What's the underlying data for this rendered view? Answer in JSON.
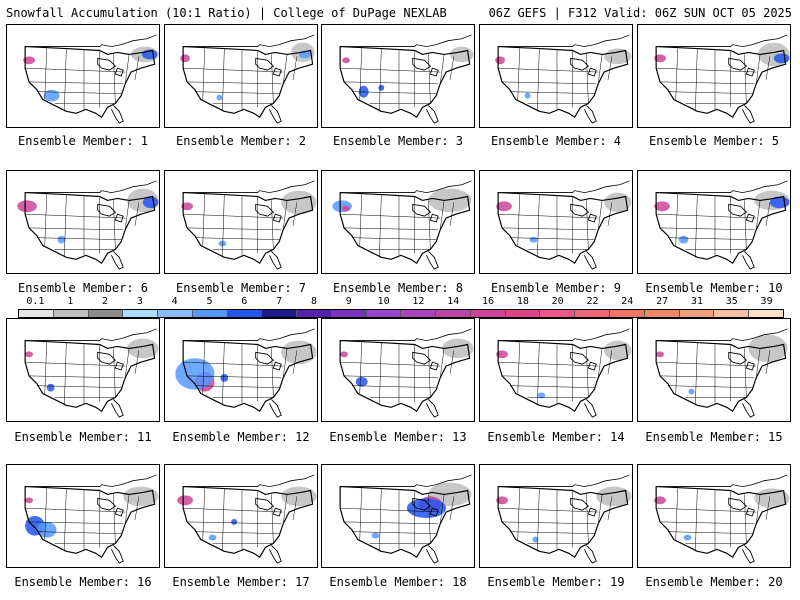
{
  "title_left": "Snowfall Accumulation (10:1 Ratio) | College of DuPage NEXLAB",
  "title_right": "06Z GEFS | F312 Valid: 06Z SUN OCT 05 2025",
  "colorbar": {
    "labels": [
      "0.1",
      "1",
      "2",
      "3",
      "4",
      "5",
      "6",
      "7",
      "8",
      "9",
      "10",
      "12",
      "14",
      "16",
      "18",
      "20",
      "22",
      "24",
      "27",
      "31",
      "35",
      "39"
    ],
    "colors": [
      "#e6e6e6",
      "#bdbdbd",
      "#8c8c8c",
      "#aaddff",
      "#88bbff",
      "#5599ff",
      "#2255ee",
      "#1a1a88",
      "#5522aa",
      "#7733bb",
      "#9944cc",
      "#aa44bb",
      "#bb44aa",
      "#cc4499",
      "#dd4488",
      "#ee5588",
      "#ee6677",
      "#ee7766",
      "#ee8866",
      "#f0a080",
      "#f5c0a0",
      "#fbe0c8"
    ]
  },
  "panels": [
    {
      "label": "Ensemble Member: 1",
      "snow": [
        [
          "#bdbdbd",
          140,
          30,
          14,
          8
        ],
        [
          "#2255ee",
          145,
          30,
          8,
          5
        ],
        [
          "#cc4499",
          22,
          36,
          6,
          4
        ],
        [
          "#5599ff",
          45,
          72,
          8,
          6
        ]
      ]
    },
    {
      "label": "Ensemble Member: 2",
      "snow": [
        [
          "#bdbdbd",
          140,
          28,
          12,
          10
        ],
        [
          "#5599ff",
          142,
          30,
          6,
          4
        ],
        [
          "#cc4499",
          20,
          34,
          5,
          4
        ],
        [
          "#5599ff",
          55,
          74,
          3,
          3
        ]
      ]
    },
    {
      "label": "Ensemble Member: 3",
      "snow": [
        [
          "#bdbdbd",
          142,
          30,
          12,
          8
        ],
        [
          "#2255ee",
          42,
          68,
          5,
          6
        ],
        [
          "#cc4499",
          24,
          36,
          4,
          3
        ],
        [
          "#2255ee",
          60,
          64,
          3,
          3
        ]
      ]
    },
    {
      "label": "Ensemble Member: 4",
      "snow": [
        [
          "#bdbdbd",
          140,
          32,
          14,
          8
        ],
        [
          "#cc4499",
          20,
          36,
          5,
          4
        ],
        [
          "#5599ff",
          48,
          72,
          3,
          3
        ]
      ]
    },
    {
      "label": "Ensemble Member: 5",
      "snow": [
        [
          "#bdbdbd",
          138,
          30,
          16,
          12
        ],
        [
          "#2255ee",
          146,
          34,
          8,
          5
        ],
        [
          "#cc4499",
          22,
          34,
          6,
          4
        ]
      ]
    },
    {
      "label": "Ensemble Member: 6",
      "snow": [
        [
          "#bdbdbd",
          138,
          30,
          16,
          12
        ],
        [
          "#2255ee",
          146,
          32,
          8,
          6
        ],
        [
          "#cc4499",
          20,
          36,
          10,
          6
        ],
        [
          "#5599ff",
          55,
          70,
          4,
          4
        ]
      ]
    },
    {
      "label": "Ensemble Member: 7",
      "snow": [
        [
          "#bdbdbd",
          136,
          32,
          18,
          12
        ],
        [
          "#cc4499",
          22,
          36,
          6,
          4
        ],
        [
          "#5599ff",
          58,
          74,
          4,
          3
        ]
      ]
    },
    {
      "label": "Ensemble Member: 8",
      "snow": [
        [
          "#bdbdbd",
          130,
          30,
          22,
          12
        ],
        [
          "#5599ff",
          20,
          36,
          10,
          6
        ],
        [
          "#cc4499",
          24,
          38,
          4,
          3
        ]
      ]
    },
    {
      "label": "Ensemble Member: 9",
      "snow": [
        [
          "#bdbdbd",
          140,
          32,
          14,
          10
        ],
        [
          "#cc4499",
          24,
          36,
          8,
          5
        ],
        [
          "#5599ff",
          54,
          70,
          4,
          3
        ]
      ]
    },
    {
      "label": "Ensemble Member: 10",
      "snow": [
        [
          "#bdbdbd",
          136,
          30,
          18,
          10
        ],
        [
          "#2255ee",
          144,
          32,
          10,
          6
        ],
        [
          "#cc4499",
          24,
          36,
          8,
          5
        ],
        [
          "#5599ff",
          46,
          70,
          5,
          4
        ]
      ]
    },
    {
      "label": "Ensemble Member: 11",
      "snow": [
        [
          "#bdbdbd",
          138,
          30,
          16,
          10
        ],
        [
          "#2255ee",
          44,
          70,
          4,
          4
        ],
        [
          "#cc4499",
          22,
          36,
          4,
          3
        ]
      ]
    },
    {
      "label": "Ensemble Member: 12",
      "snow": [
        [
          "#bdbdbd",
          136,
          34,
          18,
          12
        ],
        [
          "#cc4499",
          40,
          64,
          10,
          10
        ],
        [
          "#5599ff",
          30,
          56,
          20,
          16
        ],
        [
          "#2255ee",
          60,
          60,
          4,
          4
        ]
      ]
    },
    {
      "label": "Ensemble Member: 13",
      "snow": [
        [
          "#bdbdbd",
          138,
          30,
          16,
          10
        ],
        [
          "#2255ee",
          40,
          64,
          6,
          5
        ],
        [
          "#cc4499",
          22,
          36,
          4,
          3
        ]
      ]
    },
    {
      "label": "Ensemble Member: 14",
      "snow": [
        [
          "#bdbdbd",
          140,
          32,
          14,
          10
        ],
        [
          "#cc4499",
          22,
          36,
          6,
          4
        ],
        [
          "#5599ff",
          62,
          78,
          4,
          3
        ]
      ]
    },
    {
      "label": "Ensemble Member: 15",
      "snow": [
        [
          "#bdbdbd",
          132,
          30,
          20,
          14
        ],
        [
          "#cc4499",
          22,
          36,
          4,
          3
        ],
        [
          "#5599ff",
          54,
          74,
          3,
          3
        ]
      ]
    },
    {
      "label": "Ensemble Member: 16",
      "snow": [
        [
          "#bdbdbd",
          136,
          32,
          18,
          10
        ],
        [
          "#2255ee",
          28,
          62,
          10,
          10
        ],
        [
          "#5599ff",
          40,
          66,
          10,
          8
        ],
        [
          "#cc4499",
          22,
          36,
          4,
          3
        ]
      ]
    },
    {
      "label": "Ensemble Member: 17",
      "snow": [
        [
          "#bdbdbd",
          136,
          32,
          18,
          10
        ],
        [
          "#cc4499",
          20,
          36,
          8,
          5
        ],
        [
          "#5599ff",
          48,
          74,
          4,
          3
        ],
        [
          "#2255ee",
          70,
          58,
          3,
          3
        ]
      ]
    },
    {
      "label": "Ensemble Member: 18",
      "snow": [
        [
          "#bdbdbd",
          130,
          30,
          22,
          12
        ],
        [
          "#cc4499",
          110,
          40,
          12,
          8
        ],
        [
          "#2255ee",
          106,
          44,
          20,
          10
        ],
        [
          "#5599ff",
          54,
          72,
          4,
          3
        ]
      ]
    },
    {
      "label": "Ensemble Member: 19",
      "snow": [
        [
          "#bdbdbd",
          136,
          32,
          18,
          10
        ],
        [
          "#cc4499",
          22,
          36,
          6,
          4
        ],
        [
          "#5599ff",
          56,
          76,
          3,
          3
        ]
      ]
    },
    {
      "label": "Ensemble Member: 20",
      "snow": [
        [
          "#bdbdbd",
          136,
          34,
          18,
          10
        ],
        [
          "#cc4499",
          22,
          36,
          6,
          4
        ],
        [
          "#5599ff",
          50,
          74,
          4,
          3
        ]
      ]
    }
  ]
}
